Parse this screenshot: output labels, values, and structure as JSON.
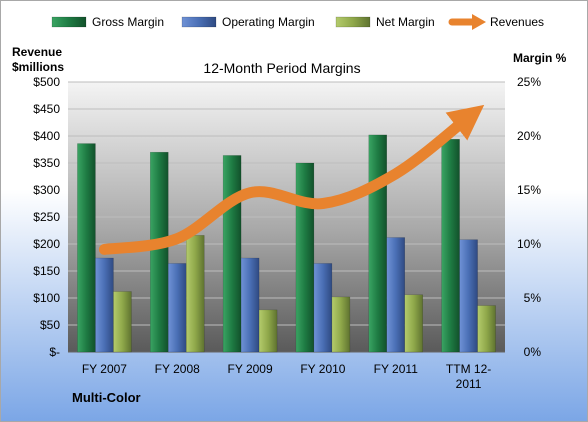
{
  "chart_data": {
    "type": "bar",
    "title": "12-Month Period Margins",
    "company": "Multi-Color",
    "left_axis": {
      "label_line1": "Revenue",
      "label_line2": "$millions",
      "range": [
        0,
        500
      ],
      "ticks": [
        "$-",
        "$50",
        "$100",
        "$150",
        "$200",
        "$250",
        "$300",
        "$350",
        "$400",
        "$450",
        "$500"
      ]
    },
    "right_axis": {
      "label": "Margin %",
      "range": [
        0,
        25
      ],
      "ticks": [
        "0%",
        "5%",
        "10%",
        "15%",
        "20%",
        "25%"
      ]
    },
    "categories": [
      [
        "FY 2007"
      ],
      [
        "FY 2008"
      ],
      [
        "FY 2009"
      ],
      [
        "FY 2010"
      ],
      [
        "FY 2011"
      ],
      [
        "TTM 12-",
        "2011"
      ]
    ],
    "series": [
      {
        "name": "Gross Margin",
        "type": "bar",
        "axis": "right",
        "color": "#1e7b43",
        "values": [
          19.3,
          18.5,
          18.2,
          17.5,
          20.1,
          19.7
        ]
      },
      {
        "name": "Operating Margin",
        "type": "bar",
        "axis": "right",
        "color": "#4a6fb5",
        "values": [
          8.7,
          8.2,
          8.7,
          8.2,
          10.6,
          10.4
        ]
      },
      {
        "name": "Net Margin",
        "type": "bar",
        "axis": "right",
        "color": "#8fa84a",
        "values": [
          5.6,
          10.8,
          3.9,
          5.1,
          5.3,
          4.3
        ]
      },
      {
        "name": "Revenues",
        "type": "line",
        "axis": "left",
        "color": "#e8832e",
        "values": [
          190,
          210,
          295,
          275,
          330,
          435
        ]
      }
    ],
    "legend_position": "top",
    "grid": true
  }
}
